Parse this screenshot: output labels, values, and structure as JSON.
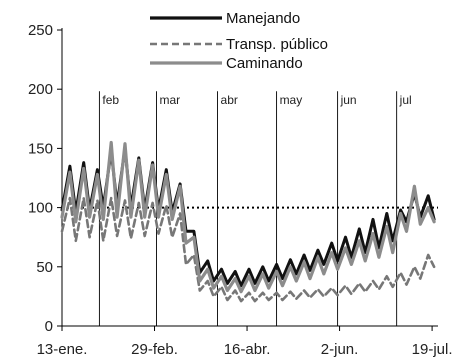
{
  "chart_data": {
    "type": "line",
    "title": "",
    "xlabel": "",
    "ylabel": "",
    "ylim": [
      0,
      250
    ],
    "y_ticks": [
      0,
      50,
      100,
      150,
      200,
      250
    ],
    "x_range": [
      "2020-01-13",
      "2020-07-22"
    ],
    "x_tick_dates": [
      "2020-01-13",
      "2020-02-29",
      "2020-04-16",
      "2020-06-02",
      "2020-07-19"
    ],
    "x_tick_labels": [
      "13-ene.",
      "29-feb.",
      "16-abr.",
      "2-jun.",
      "19-jul."
    ],
    "month_markers": [
      {
        "label": "feb",
        "date": "2020-02-01"
      },
      {
        "label": "mar",
        "date": "2020-03-01"
      },
      {
        "label": "abr",
        "date": "2020-04-01"
      },
      {
        "label": "may",
        "date": "2020-05-01"
      },
      {
        "label": "jun",
        "date": "2020-06-01"
      },
      {
        "label": "jul",
        "date": "2020-07-01"
      }
    ],
    "reference_line": {
      "y": 100,
      "style": "dotted"
    },
    "legend_position": "top-right",
    "grid": false,
    "series": [
      {
        "name": "Manejando",
        "color": "#111111",
        "style": "solid",
        "weekly_peaks": [
          [
            "2020-01-17",
            135
          ],
          [
            "2020-01-24",
            138
          ],
          [
            "2020-01-31",
            132
          ],
          [
            "2020-02-07",
            148
          ],
          [
            "2020-02-14",
            150
          ],
          [
            "2020-02-21",
            142
          ],
          [
            "2020-02-28",
            138
          ],
          [
            "2020-03-06",
            132
          ],
          [
            "2020-03-13",
            120
          ],
          [
            "2020-03-20",
            80
          ],
          [
            "2020-03-27",
            55
          ],
          [
            "2020-04-03",
            48
          ],
          [
            "2020-04-10",
            46
          ],
          [
            "2020-04-17",
            48
          ],
          [
            "2020-04-24",
            50
          ],
          [
            "2020-05-01",
            52
          ],
          [
            "2020-05-08",
            56
          ],
          [
            "2020-05-15",
            60
          ],
          [
            "2020-05-22",
            64
          ],
          [
            "2020-05-29",
            70
          ],
          [
            "2020-06-05",
            75
          ],
          [
            "2020-06-12",
            82
          ],
          [
            "2020-06-19",
            90
          ],
          [
            "2020-06-26",
            95
          ],
          [
            "2020-07-03",
            98
          ],
          [
            "2020-07-10",
            112
          ],
          [
            "2020-07-17",
            110
          ]
        ],
        "weekly_troughs": [
          [
            "2020-01-13",
            98
          ],
          [
            "2020-01-20",
            96
          ],
          [
            "2020-01-27",
            98
          ],
          [
            "2020-02-03",
            100
          ],
          [
            "2020-02-10",
            102
          ],
          [
            "2020-02-17",
            100
          ],
          [
            "2020-02-24",
            98
          ],
          [
            "2020-03-02",
            98
          ],
          [
            "2020-03-09",
            96
          ],
          [
            "2020-03-16",
            80
          ],
          [
            "2020-03-23",
            45
          ],
          [
            "2020-03-30",
            38
          ],
          [
            "2020-04-06",
            36
          ],
          [
            "2020-04-13",
            34
          ],
          [
            "2020-04-20",
            36
          ],
          [
            "2020-04-27",
            38
          ],
          [
            "2020-05-04",
            40
          ],
          [
            "2020-05-11",
            44
          ],
          [
            "2020-05-18",
            47
          ],
          [
            "2020-05-25",
            52
          ],
          [
            "2020-06-01",
            55
          ],
          [
            "2020-06-08",
            58
          ],
          [
            "2020-06-15",
            62
          ],
          [
            "2020-06-22",
            66
          ],
          [
            "2020-06-29",
            72
          ],
          [
            "2020-07-06",
            88
          ],
          [
            "2020-07-13",
            92
          ],
          [
            "2020-07-20",
            90
          ]
        ]
      },
      {
        "name": "Transp. público",
        "color": "#777777",
        "style": "dashed",
        "weekly_peaks": [
          [
            "2020-01-17",
            108
          ],
          [
            "2020-01-24",
            108
          ],
          [
            "2020-01-31",
            106
          ],
          [
            "2020-02-07",
            108
          ],
          [
            "2020-02-14",
            106
          ],
          [
            "2020-02-21",
            104
          ],
          [
            "2020-02-28",
            104
          ],
          [
            "2020-03-06",
            102
          ],
          [
            "2020-03-13",
            95
          ],
          [
            "2020-03-20",
            60
          ],
          [
            "2020-03-27",
            38
          ],
          [
            "2020-04-03",
            33
          ],
          [
            "2020-04-10",
            30
          ],
          [
            "2020-04-17",
            28
          ],
          [
            "2020-04-24",
            28
          ],
          [
            "2020-05-01",
            28
          ],
          [
            "2020-05-08",
            29
          ],
          [
            "2020-05-15",
            30
          ],
          [
            "2020-05-22",
            31
          ],
          [
            "2020-05-29",
            32
          ],
          [
            "2020-06-05",
            34
          ],
          [
            "2020-06-12",
            36
          ],
          [
            "2020-06-19",
            38
          ],
          [
            "2020-06-26",
            42
          ],
          [
            "2020-07-03",
            45
          ],
          [
            "2020-07-10",
            50
          ],
          [
            "2020-07-17",
            60
          ]
        ],
        "weekly_troughs": [
          [
            "2020-01-13",
            80
          ],
          [
            "2020-01-20",
            72
          ],
          [
            "2020-01-27",
            75
          ],
          [
            "2020-02-03",
            72
          ],
          [
            "2020-02-10",
            76
          ],
          [
            "2020-02-17",
            74
          ],
          [
            "2020-02-24",
            76
          ],
          [
            "2020-03-02",
            78
          ],
          [
            "2020-03-09",
            75
          ],
          [
            "2020-03-16",
            52
          ],
          [
            "2020-03-23",
            30
          ],
          [
            "2020-03-30",
            25
          ],
          [
            "2020-04-06",
            22
          ],
          [
            "2020-04-13",
            21
          ],
          [
            "2020-04-20",
            21
          ],
          [
            "2020-04-27",
            22
          ],
          [
            "2020-05-04",
            22
          ],
          [
            "2020-05-11",
            23
          ],
          [
            "2020-05-18",
            24
          ],
          [
            "2020-05-25",
            25
          ],
          [
            "2020-06-01",
            26
          ],
          [
            "2020-06-08",
            27
          ],
          [
            "2020-06-15",
            29
          ],
          [
            "2020-06-22",
            31
          ],
          [
            "2020-06-29",
            33
          ],
          [
            "2020-07-06",
            35
          ],
          [
            "2020-07-13",
            40
          ],
          [
            "2020-07-20",
            50
          ]
        ]
      },
      {
        "name": "Caminando",
        "color": "#8c8c8c",
        "style": "solid",
        "weekly_peaks": [
          [
            "2020-01-17",
            130
          ],
          [
            "2020-01-24",
            133
          ],
          [
            "2020-01-31",
            128
          ],
          [
            "2020-02-07",
            155
          ],
          [
            "2020-02-14",
            154
          ],
          [
            "2020-02-21",
            140
          ],
          [
            "2020-02-28",
            136
          ],
          [
            "2020-03-06",
            128
          ],
          [
            "2020-03-13",
            118
          ],
          [
            "2020-03-20",
            75
          ],
          [
            "2020-03-27",
            48
          ],
          [
            "2020-04-03",
            42
          ],
          [
            "2020-04-10",
            40
          ],
          [
            "2020-04-17",
            42
          ],
          [
            "2020-04-24",
            44
          ],
          [
            "2020-05-01",
            46
          ],
          [
            "2020-05-08",
            50
          ],
          [
            "2020-05-15",
            54
          ],
          [
            "2020-05-22",
            58
          ],
          [
            "2020-05-29",
            62
          ],
          [
            "2020-06-05",
            66
          ],
          [
            "2020-06-12",
            72
          ],
          [
            "2020-06-19",
            78
          ],
          [
            "2020-06-26",
            84
          ],
          [
            "2020-07-03",
            95
          ],
          [
            "2020-07-10",
            118
          ],
          [
            "2020-07-17",
            100
          ]
        ],
        "weekly_troughs": [
          [
            "2020-01-13",
            92
          ],
          [
            "2020-01-20",
            88
          ],
          [
            "2020-01-27",
            92
          ],
          [
            "2020-02-03",
            90
          ],
          [
            "2020-02-10",
            92
          ],
          [
            "2020-02-17",
            92
          ],
          [
            "2020-02-24",
            92
          ],
          [
            "2020-03-02",
            92
          ],
          [
            "2020-03-09",
            90
          ],
          [
            "2020-03-16",
            70
          ],
          [
            "2020-03-23",
            38
          ],
          [
            "2020-03-30",
            32
          ],
          [
            "2020-04-06",
            30
          ],
          [
            "2020-04-13",
            29
          ],
          [
            "2020-04-20",
            30
          ],
          [
            "2020-04-27",
            32
          ],
          [
            "2020-05-04",
            34
          ],
          [
            "2020-05-11",
            38
          ],
          [
            "2020-05-18",
            40
          ],
          [
            "2020-05-25",
            44
          ],
          [
            "2020-06-01",
            48
          ],
          [
            "2020-06-08",
            52
          ],
          [
            "2020-06-15",
            55
          ],
          [
            "2020-06-22",
            58
          ],
          [
            "2020-06-29",
            62
          ],
          [
            "2020-07-06",
            80
          ],
          [
            "2020-07-13",
            86
          ],
          [
            "2020-07-20",
            88
          ]
        ]
      }
    ]
  }
}
